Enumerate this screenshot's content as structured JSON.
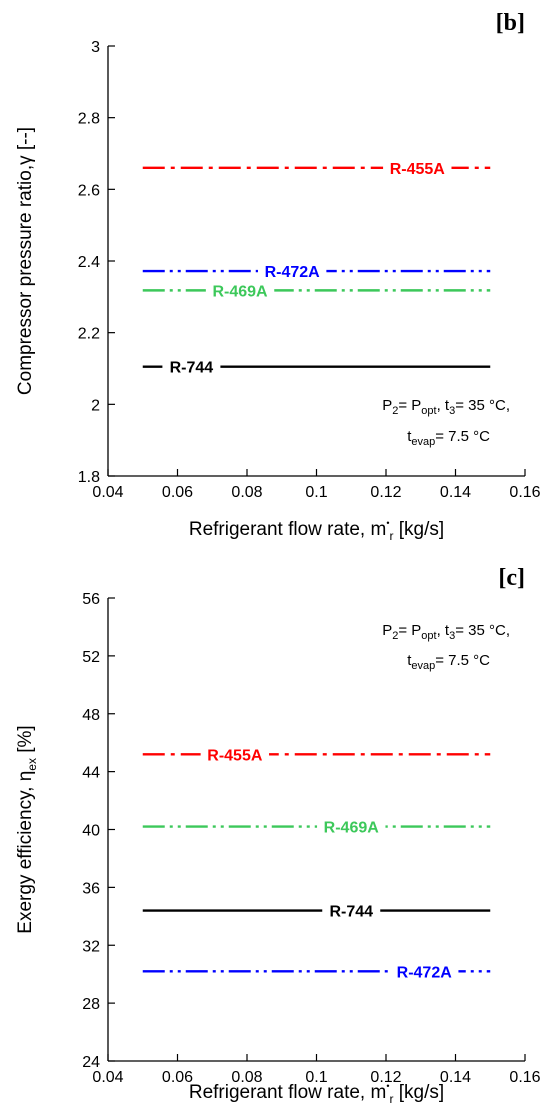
{
  "chart_data": [
    {
      "type": "line",
      "panel_label": "[b]",
      "xlabel_main": "Refrigerant flow rate, m",
      "xlabel_sup": "•",
      "xlabel_sub": "r",
      "xlabel_end": " [kg/s]",
      "ylabel": "Compressor pressure ratio,γ [--]",
      "xlim": [
        0.04,
        0.16
      ],
      "ylim": [
        1.8,
        3.0
      ],
      "xticks": [
        0.04,
        0.06,
        0.08,
        0.1,
        0.12,
        0.14,
        0.16
      ],
      "xtick_labels": [
        "0.04",
        "0.06",
        "0.08",
        "0.1",
        "0.12",
        "0.14",
        "0.16"
      ],
      "yticks": [
        1.8,
        2.0,
        2.2,
        2.4,
        2.6,
        2.8,
        3.0
      ],
      "ytick_labels": [
        "1.8",
        "2",
        "2.2",
        "2.4",
        "2.6",
        "2.8",
        "3"
      ],
      "grid": false,
      "annotation": {
        "line1": {
          "p": "P",
          "p_sub": "2",
          "eq1": "= P",
          "opt_sub": "opt",
          "t": ", t",
          "t_sub": "3",
          "t_val": "= 35 °C,"
        },
        "line2": {
          "t": "t",
          "t_sub": "evap",
          "t_val": "= 7.5 °C"
        }
      },
      "series": [
        {
          "name": "R-455A",
          "color": "#ff0000",
          "dash": "dashdot",
          "x": [
            0.05,
            0.15
          ],
          "y": [
            2.66,
            2.66
          ],
          "label_x": 0.129
        },
        {
          "name": "R-472A",
          "color": "#0000ff",
          "dash": "dashdotdot",
          "x": [
            0.05,
            0.15
          ],
          "y": [
            2.372,
            2.372
          ],
          "label_x": 0.093
        },
        {
          "name": "R-469A",
          "color": "#3cc85a",
          "dash": "dashdotdot",
          "x": [
            0.05,
            0.15
          ],
          "y": [
            2.318,
            2.318
          ],
          "label_x": 0.078
        },
        {
          "name": "R-744",
          "color": "#000000",
          "dash": "solid",
          "x": [
            0.05,
            0.15
          ],
          "y": [
            2.105,
            2.105
          ],
          "label_x": 0.064
        }
      ]
    },
    {
      "type": "line",
      "panel_label": "[c]",
      "xlabel_main": "Refrigerant flow rate, m",
      "xlabel_sup": "•",
      "xlabel_sub": "r",
      "xlabel_end": " [kg/s]",
      "ylabel_main": "Exergy efficiency, η",
      "ylabel_sub": "ex",
      "ylabel_end": " [%]",
      "xlim": [
        0.04,
        0.16
      ],
      "ylim": [
        24,
        56
      ],
      "xticks": [
        0.04,
        0.06,
        0.08,
        0.1,
        0.12,
        0.14,
        0.16
      ],
      "xtick_labels": [
        "0.04",
        "0.06",
        "0.08",
        "0.1",
        "0.12",
        "0.14",
        "0.16"
      ],
      "yticks": [
        24,
        28,
        32,
        36,
        40,
        44,
        48,
        52,
        56
      ],
      "ytick_labels": [
        "24",
        "28",
        "32",
        "36",
        "40",
        "44",
        "48",
        "52",
        "56"
      ],
      "grid": false,
      "annotation": {
        "line1": {
          "p": "P",
          "p_sub": "2",
          "eq1": "= P",
          "opt_sub": "opt",
          "t": ", t",
          "t_sub": "3",
          "t_val": "= 35 °C,"
        },
        "line2": {
          "t": "t",
          "t_sub": "evap",
          "t_val": "= 7.5 °C"
        }
      },
      "series": [
        {
          "name": "R-455A",
          "color": "#ff0000",
          "dash": "dashdot",
          "x": [
            0.05,
            0.15
          ],
          "y": [
            45.2,
            45.2
          ],
          "label_x": 0.0765
        },
        {
          "name": "R-469A",
          "color": "#3cc85a",
          "dash": "dashdotdot",
          "x": [
            0.05,
            0.15
          ],
          "y": [
            40.2,
            40.2
          ],
          "label_x": 0.11
        },
        {
          "name": "R-744",
          "color": "#000000",
          "dash": "solid",
          "x": [
            0.05,
            0.15
          ],
          "y": [
            34.4,
            34.4
          ],
          "label_x": 0.11
        },
        {
          "name": "R-472A",
          "color": "#0000ff",
          "dash": "dashdotdot",
          "x": [
            0.05,
            0.15
          ],
          "y": [
            30.2,
            30.2
          ],
          "label_x": 0.131
        }
      ]
    }
  ]
}
